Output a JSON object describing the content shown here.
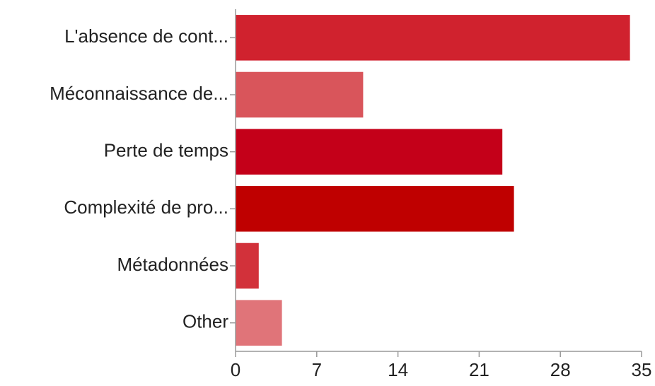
{
  "chart_data": {
    "type": "bar",
    "orientation": "horizontal",
    "categories": [
      "L'absence de cont...",
      "Méconnaissance de...",
      "Perte de temps",
      "Complexité de pro...",
      "Métadonnées",
      "Other"
    ],
    "values": [
      34,
      11,
      23,
      24,
      2,
      4
    ],
    "colors": [
      "#d0222e",
      "#d9555b",
      "#c40019",
      "#bf0000",
      "#d2313a",
      "#e07479"
    ],
    "xlim": [
      0,
      35
    ],
    "xticks": [
      0,
      7,
      14,
      21,
      28,
      35
    ],
    "grid": false
  }
}
